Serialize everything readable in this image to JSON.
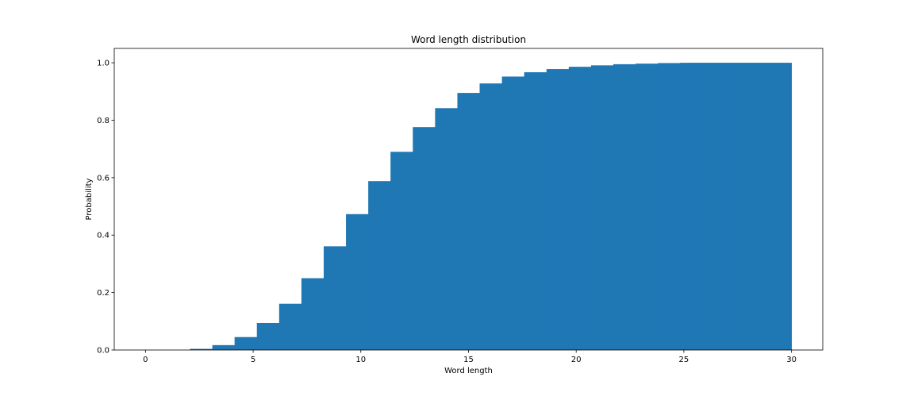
{
  "chart_data": {
    "type": "bar",
    "title": "Word length distribution",
    "xlabel": "Word length",
    "ylabel": "Probability",
    "xlim": [
      -1.45,
      31.45
    ],
    "ylim": [
      0,
      1.05
    ],
    "xticks": [
      0,
      5,
      10,
      15,
      20,
      25,
      30
    ],
    "yticks": [
      0.0,
      0.2,
      0.4,
      0.6,
      0.8,
      1.0
    ],
    "xtick_labels": [
      "0",
      "5",
      "10",
      "15",
      "20",
      "25",
      "30"
    ],
    "ytick_labels": [
      "0.0",
      "0.2",
      "0.4",
      "0.6",
      "0.8",
      "1.0"
    ],
    "cumulative": true,
    "bin_edges": [
      0,
      1.034,
      2.069,
      3.103,
      4.138,
      5.172,
      6.207,
      7.241,
      8.276,
      9.31,
      10.345,
      11.379,
      12.414,
      13.448,
      14.483,
      15.517,
      16.552,
      17.586,
      18.621,
      19.655,
      20.69,
      21.724,
      22.759,
      23.793,
      24.828,
      25.862,
      26.897,
      27.931,
      28.966,
      30
    ],
    "values": [
      0.0,
      0.0,
      0.004,
      0.017,
      0.045,
      0.094,
      0.161,
      0.25,
      0.361,
      0.473,
      0.588,
      0.69,
      0.776,
      0.842,
      0.895,
      0.928,
      0.952,
      0.967,
      0.978,
      0.986,
      0.991,
      0.995,
      0.997,
      0.999,
      1.0,
      1.0,
      1.0,
      1.0,
      1.0
    ],
    "grid": false,
    "colors": {
      "bar": "#1f77b4"
    }
  }
}
